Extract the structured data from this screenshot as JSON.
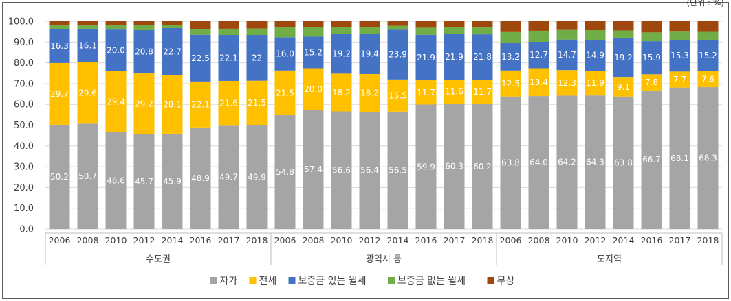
{
  "unit_note": "(단위 : %)",
  "chart_data": {
    "type": "stacked-bar",
    "ylim": [
      0,
      100
    ],
    "yticks": [
      "0.0",
      "10.0",
      "20.0",
      "30.0",
      "40.0",
      "50.0",
      "60.0",
      "70.0",
      "80.0",
      "90.0",
      "100.0"
    ],
    "groups": [
      {
        "name": "수도권",
        "years": [
          "2006",
          "2008",
          "2010",
          "2012",
          "2014",
          "2016",
          "2017",
          "2018"
        ]
      },
      {
        "name": "광역시 등",
        "years": [
          "2006",
          "2008",
          "2010",
          "2012",
          "2014",
          "2016",
          "2017",
          "2018"
        ]
      },
      {
        "name": "도지역",
        "years": [
          "2006",
          "2008",
          "2010",
          "2012",
          "2014",
          "2016",
          "2017",
          "2018"
        ]
      }
    ],
    "series": [
      {
        "name": "자가",
        "color": "#a5a5a5",
        "values": [
          50.2,
          50.7,
          46.6,
          45.7,
          45.9,
          48.9,
          49.7,
          49.9,
          54.8,
          57.4,
          56.6,
          56.4,
          56.5,
          59.9,
          60.3,
          60.2,
          63.8,
          64.0,
          64.2,
          64.3,
          63.8,
          66.7,
          68.1,
          68.3
        ],
        "labels": [
          "50.2",
          "50.7",
          "46.6",
          "45.7",
          "45.9",
          "48.9",
          "49.7",
          "49.9",
          "54.8",
          "57.4",
          "56.6",
          "56.4",
          "56.5",
          "59.9",
          "60.3",
          "60.2",
          "63.8",
          "64.0",
          "64.2",
          "64.3",
          "63.8",
          "66.7",
          "68.1",
          "68.3"
        ]
      },
      {
        "name": "전세",
        "color": "#ffc000",
        "values": [
          29.7,
          29.6,
          29.4,
          29.2,
          28.1,
          22.1,
          21.6,
          21.5,
          21.5,
          20.0,
          18.2,
          18.2,
          15.5,
          11.7,
          11.6,
          11.7,
          12.5,
          13.4,
          12.3,
          11.9,
          9.1,
          7.8,
          7.7,
          7.6
        ],
        "labels": [
          "29.7",
          "29.6",
          "29.4",
          "29.2",
          "28.1",
          "22.1",
          "21.6",
          "21.5",
          "21.5",
          "20.0",
          "18.2",
          "18.2",
          "15.5",
          "11.7",
          "11.6",
          "11.7",
          "12.5",
          "13.4",
          "12.3",
          "11.9",
          "9.1",
          "7.8",
          "7.7",
          "7.6"
        ]
      },
      {
        "name": "보증금 있는 월세",
        "color": "#4472c4",
        "values": [
          16.3,
          16.1,
          20.0,
          20.8,
          22.7,
          22.5,
          22.1,
          22.0,
          16.0,
          15.2,
          19.2,
          19.4,
          23.9,
          21.9,
          21.9,
          21.8,
          13.2,
          12.7,
          14.7,
          14.9,
          19.2,
          15.9,
          15.3,
          15.2
        ],
        "labels": [
          "16.3",
          "16.1",
          "20.0",
          "20.8",
          "22.7",
          "22.5",
          "22.1",
          "22",
          "16.0",
          "15.2",
          "19.2",
          "19.4",
          "23.9",
          "21.9",
          "21.9",
          "21.8",
          "13.2",
          "12.7",
          "14.7",
          "14.9",
          "19.2",
          "15.9",
          "15.3",
          "15.2"
        ]
      },
      {
        "name": "보증금 없는 월세",
        "color": "#70ad47",
        "values": [
          1.8,
          1.6,
          2.1,
          2.4,
          1.6,
          2.8,
          3.0,
          3.1,
          5.0,
          4.5,
          3.3,
          3.2,
          1.9,
          3.4,
          3.3,
          3.3,
          5.6,
          5.3,
          4.6,
          4.6,
          3.4,
          4.2,
          4.2,
          4.1
        ]
      },
      {
        "name": "무상",
        "color": "#9e480e",
        "values": [
          2.0,
          2.0,
          1.9,
          1.9,
          1.7,
          3.7,
          3.6,
          3.5,
          2.7,
          2.9,
          2.7,
          2.8,
          2.2,
          3.1,
          2.9,
          3.0,
          4.9,
          4.6,
          4.2,
          4.3,
          4.5,
          5.4,
          4.7,
          4.8
        ]
      }
    ]
  }
}
